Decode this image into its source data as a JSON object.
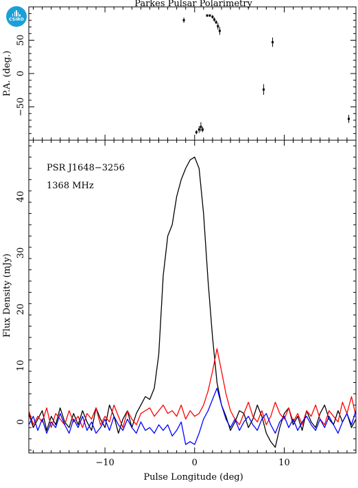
{
  "logo": {
    "text": "CSIRO",
    "icon": "csiro-logo-icon",
    "color": "#1aa0d8"
  },
  "chart_data": [
    {
      "type": "scatter",
      "title": "Parkes Pulsar Polarimetry",
      "ylabel": "P.A. (deg.)",
      "xlim": [
        -18.5,
        18
      ],
      "ylim": [
        -100,
        100
      ],
      "yticks": [
        50,
        0,
        -50
      ],
      "points": [
        {
          "x": -1.2,
          "y": 80,
          "err": 4
        },
        {
          "x": 0.2,
          "y": -88,
          "err": 3
        },
        {
          "x": 0.5,
          "y": -84,
          "err": 5
        },
        {
          "x": 0.7,
          "y": -80,
          "err": 7
        },
        {
          "x": 0.9,
          "y": -84,
          "err": 4
        },
        {
          "x": 1.4,
          "y": 87,
          "err": 2
        },
        {
          "x": 1.7,
          "y": 87,
          "err": 2
        },
        {
          "x": 2.0,
          "y": 85,
          "err": 3
        },
        {
          "x": 2.2,
          "y": 81,
          "err": 3
        },
        {
          "x": 2.4,
          "y": 77,
          "err": 3
        },
        {
          "x": 2.6,
          "y": 71,
          "err": 5
        },
        {
          "x": 2.8,
          "y": 64,
          "err": 6
        },
        {
          "x": 7.7,
          "y": -24,
          "err": 8
        },
        {
          "x": 8.7,
          "y": 47,
          "err": 7
        },
        {
          "x": 17.2,
          "y": -68,
          "err": 6
        }
      ]
    },
    {
      "type": "line",
      "xlabel": "Pulse Longitude (deg)",
      "ylabel": "Flux Density (mJy)",
      "xlim": [
        -18.5,
        18
      ],
      "ylim": [
        -5.5,
        50
      ],
      "xticks": [
        -10,
        0,
        10
      ],
      "yticks": [
        0,
        10,
        20,
        30,
        40
      ],
      "annotations": [
        "PSR J1648−3256",
        "1368 MHz"
      ],
      "x": [
        -18.5,
        -18.0,
        -17.5,
        -17.0,
        -16.5,
        -16.0,
        -15.5,
        -15.0,
        -14.5,
        -14.0,
        -13.5,
        -13.0,
        -12.5,
        -12.0,
        -11.5,
        -11.0,
        -10.5,
        -10.0,
        -9.5,
        -9.0,
        -8.5,
        -8.0,
        -7.5,
        -7.0,
        -6.5,
        -6.0,
        -5.5,
        -5.0,
        -4.5,
        -4.0,
        -3.5,
        -3.0,
        -2.5,
        -2.0,
        -1.5,
        -1.0,
        -0.5,
        0.0,
        0.5,
        1.0,
        1.5,
        2.0,
        2.5,
        3.0,
        3.5,
        4.0,
        4.5,
        5.0,
        5.5,
        6.0,
        6.5,
        7.0,
        7.5,
        8.0,
        8.5,
        9.0,
        9.5,
        10.0,
        10.5,
        11.0,
        11.5,
        12.0,
        12.5,
        13.0,
        13.5,
        14.0,
        14.5,
        15.0,
        15.5,
        16.0,
        16.5,
        17.0,
        17.5,
        18.0
      ],
      "series": [
        {
          "color": "#000000",
          "values": [
            1.5,
            -1.0,
            0.5,
            2.0,
            -1.5,
            1.0,
            -0.5,
            2.5,
            0.0,
            -1.0,
            1.5,
            -0.5,
            2.0,
            0.0,
            -1.5,
            2.5,
            0.5,
            -1.0,
            3.0,
            1.0,
            -2.0,
            0.5,
            2.0,
            -1.0,
            1.5,
            3.0,
            4.5,
            4.0,
            6.0,
            12.0,
            26.0,
            33.0,
            35.0,
            40.0,
            43.0,
            45.0,
            46.5,
            47.0,
            45.0,
            37.0,
            25.0,
            15.0,
            7.0,
            3.0,
            1.0,
            -1.5,
            0.0,
            2.0,
            1.5,
            -1.0,
            0.5,
            3.0,
            1.0,
            -2.0,
            -3.5,
            -4.5,
            -1.0,
            1.5,
            2.5,
            -0.5,
            1.0,
            -1.5,
            2.0,
            0.0,
            -1.0,
            1.5,
            3.0,
            0.5,
            -0.5,
            2.0,
            0.0,
            1.5,
            -1.0,
            0.5
          ]
        },
        {
          "color": "#ff0000",
          "values": [
            2.0,
            -0.5,
            1.0,
            0.0,
            2.5,
            -1.0,
            1.5,
            0.5,
            -0.5,
            2.0,
            0.0,
            1.0,
            -1.0,
            1.5,
            0.5,
            2.5,
            -0.5,
            1.0,
            0.0,
            3.0,
            1.0,
            -1.0,
            2.0,
            0.5,
            -0.5,
            1.5,
            2.0,
            2.5,
            1.0,
            2.0,
            3.0,
            1.5,
            2.0,
            1.0,
            3.0,
            0.5,
            2.0,
            1.0,
            1.5,
            3.0,
            5.5,
            9.0,
            13.0,
            9.0,
            5.0,
            2.0,
            0.5,
            -0.5,
            1.5,
            3.5,
            1.0,
            0.0,
            2.0,
            -0.5,
            1.0,
            3.5,
            1.5,
            0.5,
            2.5,
            0.0,
            1.5,
            -0.5,
            2.0,
            1.0,
            3.0,
            0.5,
            -0.5,
            2.0,
            1.0,
            0.0,
            3.5,
            1.5,
            4.5,
            1.0
          ]
        },
        {
          "color": "#0000ff",
          "values": [
            -0.5,
            1.0,
            -1.5,
            0.5,
            -2.0,
            0.0,
            -1.0,
            1.5,
            -0.5,
            -2.0,
            0.5,
            -1.0,
            1.0,
            -1.5,
            0.0,
            -2.0,
            -1.0,
            0.5,
            -1.5,
            1.0,
            -0.5,
            -1.5,
            0.5,
            -1.0,
            -2.0,
            0.0,
            -1.5,
            -1.0,
            -2.0,
            -0.5,
            -1.5,
            -0.5,
            -2.5,
            -1.5,
            0.0,
            -4.0,
            -3.5,
            -4.0,
            -2.0,
            0.5,
            2.0,
            4.0,
            6.0,
            3.0,
            0.5,
            -1.0,
            0.5,
            -1.5,
            0.0,
            1.0,
            -0.5,
            -1.5,
            0.5,
            1.5,
            -0.5,
            -2.0,
            0.0,
            1.0,
            -1.0,
            0.5,
            -1.5,
            0.0,
            1.0,
            -0.5,
            -1.5,
            0.5,
            -1.0,
            1.0,
            -0.5,
            -2.0,
            0.0,
            1.5,
            -0.5,
            2.0
          ]
        }
      ]
    }
  ]
}
